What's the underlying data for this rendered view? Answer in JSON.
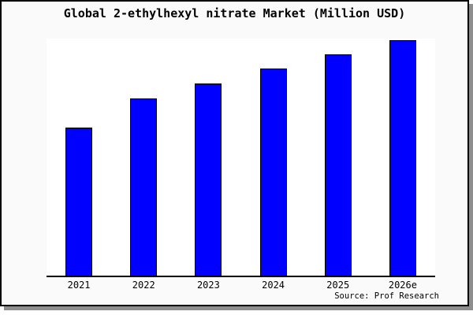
{
  "title": "Global 2-ethylhexyl nitrate Market (Million USD)",
  "source": "Source: Prof Research",
  "chart_data": {
    "type": "bar",
    "title": "Global 2-ethylhexyl nitrate Market (Million USD)",
    "categories": [
      "2021",
      "2022",
      "2023",
      "2024",
      "2025",
      "2026e"
    ],
    "values": [
      188,
      225,
      244,
      263,
      281,
      299
    ],
    "value_unit": "relative bar height in px (no y-axis scale, ticks or gridlines shown)",
    "xlabel": "",
    "ylabel": "",
    "ylim": [
      0,
      301
    ],
    "grid": false,
    "legend": false,
    "bar_color": "#0000ff",
    "bar_border_color": "#000000"
  },
  "colors": {
    "figure_background": "#fafafa",
    "plot_background": "#ffffff",
    "bar_fill": "#0000ff",
    "bar_border": "#000000",
    "axis_line": "#000000",
    "page_border": "#000000",
    "drop_shadow": "#8e8e8e",
    "text": "#000000"
  }
}
